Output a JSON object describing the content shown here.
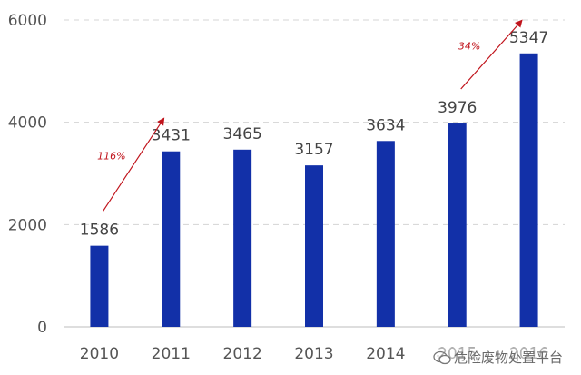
{
  "chart_data": {
    "type": "bar",
    "categories": [
      "2010",
      "2011",
      "2012",
      "2013",
      "2014",
      "2015",
      "2016"
    ],
    "values": [
      1586,
      3431,
      3465,
      3157,
      3634,
      3976,
      5347
    ],
    "ylim": [
      0,
      6000
    ],
    "yticks": [
      0,
      2000,
      4000,
      6000
    ],
    "ytick_labels": [
      "0",
      "2000",
      "4000",
      "6000"
    ],
    "grid": true,
    "bar_color": "#1230a8",
    "annotations": [
      {
        "label": "116%",
        "from": "2010",
        "to": "2011",
        "color": "#c0141c"
      },
      {
        "label": "34%",
        "from": "2015",
        "to": "2016",
        "color": "#c0141c"
      }
    ]
  },
  "watermark": {
    "icon": "wechat-icon",
    "text": "危险废物处置平台"
  }
}
